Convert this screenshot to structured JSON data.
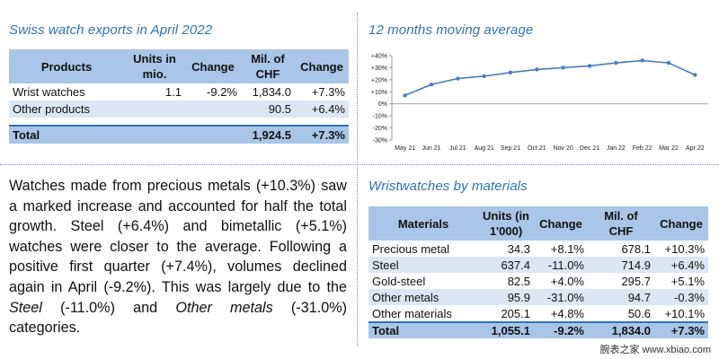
{
  "exports": {
    "title": "Swiss watch exports in April 2022",
    "headers": [
      "Products",
      "Units in mio.",
      "Change",
      "Mil. of CHF",
      "Change"
    ],
    "rows": [
      [
        "Wrist watches",
        "1.1",
        "-9.2%",
        "1,834.0",
        "+7.3%"
      ],
      [
        "Other products",
        "",
        "",
        "90.5",
        "+6.4%"
      ]
    ],
    "total": [
      "Total",
      "",
      "",
      "1,924.5",
      "+7.3%"
    ]
  },
  "moving_average": {
    "title": "12 months moving average"
  },
  "chart_data": {
    "type": "line",
    "title": "12 months moving average",
    "categories": [
      "May 21",
      "Jun 21",
      "Jul 21",
      "Aug 21",
      "Sep 21",
      "Oct 21",
      "Nov 20",
      "Dec 21",
      "Jan 22",
      "Feb 22",
      "Mar 22",
      "Apr 22"
    ],
    "values": [
      7,
      16,
      21,
      23,
      26,
      28.5,
      30,
      31.5,
      34,
      36,
      34,
      24
    ],
    "ylim": [
      -30,
      40
    ],
    "yticks": [
      "+40%",
      "+30%",
      "+20%",
      "+10%",
      "0%",
      "-10%",
      "-20%",
      "-30%"
    ],
    "ytick_values": [
      40,
      30,
      20,
      10,
      0,
      -10,
      -20,
      -30
    ],
    "grid": false,
    "color": "#4a7ebb"
  },
  "text": {
    "p1": "Watches made from precious metals (+10.3%) saw a marked increase and accounted for half the total growth. Steel (+6.4%) and bimetallic (+5.1%) watches were closer to the average. Following a positive first quarter (+7.4%), volumes declined again in April (-9.2%). This was largely due to the ",
    "steel": "Steel",
    "p2": " (-11.0%) and ",
    "other_metals": "Other metals",
    "p3": " (-31.0%) categories."
  },
  "materials": {
    "title": "Wristwatches by materials",
    "headers": [
      "Materials",
      "Units (in 1'000)",
      "Change",
      "Mil. of CHF",
      "Change"
    ],
    "rows": [
      [
        "Precious metal",
        "34.3",
        "+8.1%",
        "678.1",
        "+10.3%"
      ],
      [
        "Steel",
        "637.4",
        "-11.0%",
        "714.9",
        "+6.4%"
      ],
      [
        "Gold-steel",
        "82.5",
        "+4.0%",
        "295.7",
        "+5.1%"
      ],
      [
        "Other metals",
        "95.9",
        "-31.0%",
        "94.7",
        "-0.3%"
      ],
      [
        "Other materials",
        "205.1",
        "+4.8%",
        "50.6",
        "+10.1%"
      ]
    ],
    "total": [
      "Total",
      "1,055.1",
      "-9.2%",
      "1,834.0",
      "+7.3%"
    ]
  },
  "watermark": "腕表之家 www.xbiao.com"
}
